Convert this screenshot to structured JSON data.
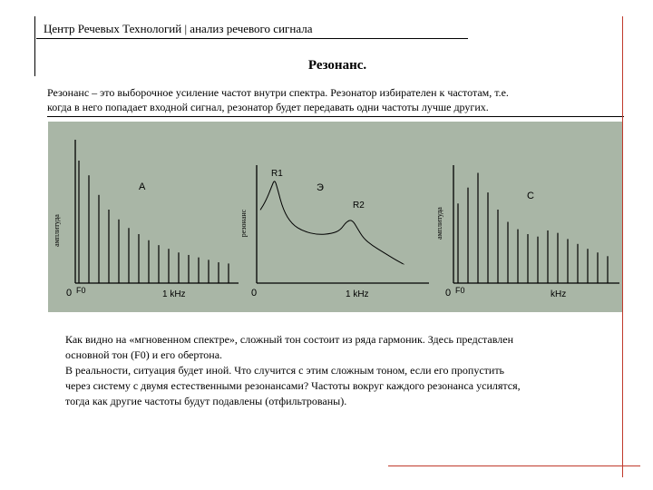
{
  "header": {
    "title": "Центр Речевых Технологий | анализ речевого сигнала"
  },
  "slide": {
    "title": "Резонанс.",
    "intro_lines": [
      "Резонанс – это выборочное усиление частот внутри спектра. Резонатор избирателен к частотам, т.е.",
      "когда в него попадает входной сигнал, резонатор будет передавать одни частоты лучше других."
    ],
    "body_lines": [
      "Как видно на «мгновенном спектре», сложный тон состоит из ряда гармоник. Здесь представлен",
      "основной тон (F0) и его обертона.",
      "В реальности, ситуация будет иной. Что случится с этим сложным тоном, если его пропустить",
      "через систему с двумя естественными резонансами? Частоты вокруг каждого резонанса усилятся,",
      "тогда как  другие частоты будут подавлены (отфильтрованы)."
    ]
  },
  "figure": {
    "background": "#a9b6a6",
    "panels": [
      {
        "letter": "A",
        "ylabel": "амплитуда",
        "origin": "0",
        "f0": "F0",
        "khz": "1 kHz"
      },
      {
        "letter": "Э",
        "ylabel": "резонанс",
        "origin": "0",
        "khz": "1 kHz",
        "r1": "R1",
        "r2": "R2"
      },
      {
        "letter": "C",
        "ylabel": "амплитуда",
        "origin": "0",
        "f0": "F0",
        "khz": "kHz"
      }
    ]
  },
  "chart_data": [
    {
      "type": "bar",
      "description_label": "A",
      "values": [
        1.0,
        0.88,
        0.72,
        0.6,
        0.52,
        0.45,
        0.4,
        0.35,
        0.31,
        0.28,
        0.25,
        0.23,
        0.21,
        0.19,
        0.17,
        0.16
      ]
    },
    {
      "type": "line",
      "description_label": "Э",
      "peaks": [
        "R1",
        "R2"
      ],
      "x": [
        0.0,
        0.04,
        0.08,
        0.1,
        0.12,
        0.16,
        0.22,
        0.3,
        0.4,
        0.5,
        0.56,
        0.6,
        0.64,
        0.68,
        0.72,
        0.78,
        0.86,
        0.94,
        1.0
      ],
      "values": [
        0.62,
        0.7,
        0.82,
        0.88,
        0.8,
        0.62,
        0.5,
        0.44,
        0.41,
        0.42,
        0.45,
        0.52,
        0.54,
        0.46,
        0.38,
        0.32,
        0.26,
        0.2,
        0.16
      ]
    },
    {
      "type": "bar",
      "description_label": "C",
      "values": [
        0.65,
        0.78,
        0.9,
        0.74,
        0.6,
        0.5,
        0.44,
        0.4,
        0.38,
        0.43,
        0.41,
        0.36,
        0.32,
        0.28,
        0.25,
        0.22
      ]
    }
  ]
}
